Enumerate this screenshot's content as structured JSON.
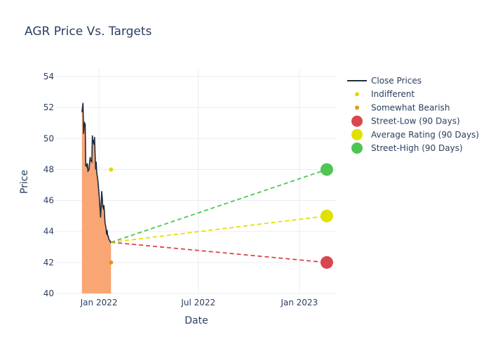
{
  "chart_data": {
    "type": "line",
    "title": "AGR Price Vs. Targets",
    "xlabel": "Date",
    "ylabel": "Price",
    "ylim": [
      40,
      54.5
    ],
    "xlim": [
      "2021-10-15",
      "2023-03-10"
    ],
    "y_ticks": [
      40,
      42,
      44,
      46,
      48,
      50,
      52,
      54
    ],
    "x_ticks": [
      {
        "date": "2022-01-01",
        "label": "Jan 2022"
      },
      {
        "date": "2022-07-01",
        "label": "Jul 2022"
      },
      {
        "date": "2023-01-01",
        "label": "Jan 2023"
      }
    ],
    "grid": true,
    "legend_position": "right",
    "colors": {
      "close_line": "#1f2d3d",
      "close_fill": "#f9a574",
      "indifferent": "#e1d800",
      "somewhat_bearish": "#e09a1b",
      "street_low": "#d9464d",
      "average": "#e1e100",
      "street_high": "#4fc553"
    },
    "series": [
      {
        "name": "Close Prices",
        "kind": "area-line",
        "points": [
          [
            "2021-12-01",
            51.7
          ],
          [
            "2021-12-02",
            52.0
          ],
          [
            "2021-12-03",
            52.3
          ],
          [
            "2021-12-04",
            50.3
          ],
          [
            "2021-12-05",
            50.8
          ],
          [
            "2021-12-06",
            51.0
          ],
          [
            "2021-12-07",
            50.9
          ],
          [
            "2021-12-08",
            48.2
          ],
          [
            "2021-12-09",
            48.3
          ],
          [
            "2021-12-10",
            48.2
          ],
          [
            "2021-12-11",
            48.4
          ],
          [
            "2021-12-12",
            47.9
          ],
          [
            "2021-12-14",
            48.0
          ],
          [
            "2021-12-16",
            48.8
          ],
          [
            "2021-12-17",
            48.6
          ],
          [
            "2021-12-19",
            48.5
          ],
          [
            "2021-12-20",
            50.2
          ],
          [
            "2021-12-21",
            49.7
          ],
          [
            "2021-12-22",
            49.8
          ],
          [
            "2021-12-23",
            49.6
          ],
          [
            "2021-12-24",
            50.1
          ],
          [
            "2021-12-25",
            49.0
          ],
          [
            "2021-12-26",
            48.0
          ],
          [
            "2021-12-27",
            48.5
          ],
          [
            "2021-12-28",
            47.8
          ],
          [
            "2021-12-30",
            47.3
          ],
          [
            "2022-01-01",
            46.5
          ],
          [
            "2022-01-02",
            46.0
          ],
          [
            "2022-01-03",
            45.5
          ],
          [
            "2022-01-04",
            44.9
          ],
          [
            "2022-01-05",
            45.7
          ],
          [
            "2022-01-06",
            46.6
          ],
          [
            "2022-01-07",
            46.2
          ],
          [
            "2022-01-08",
            45.6
          ],
          [
            "2022-01-09",
            45.5
          ],
          [
            "2022-01-10",
            45.7
          ],
          [
            "2022-01-11",
            45.3
          ],
          [
            "2022-01-12",
            44.6
          ],
          [
            "2022-01-14",
            44.2
          ],
          [
            "2022-01-15",
            43.8
          ],
          [
            "2022-01-16",
            44.1
          ],
          [
            "2022-01-17",
            43.7
          ],
          [
            "2022-01-18",
            43.7
          ],
          [
            "2022-01-19",
            43.5
          ],
          [
            "2022-01-21",
            43.4
          ],
          [
            "2022-01-22",
            43.3
          ],
          [
            "2022-01-23",
            43.3
          ]
        ]
      },
      {
        "name": "Indifferent",
        "kind": "marker",
        "size": "small",
        "points": [
          [
            "2022-01-23",
            48.0
          ]
        ]
      },
      {
        "name": "Somewhat Bearish",
        "kind": "marker",
        "size": "small",
        "points": [
          [
            "2022-01-23",
            42.0
          ]
        ]
      },
      {
        "name": "Street-Low (90 Days)",
        "kind": "target",
        "start": [
          "2022-01-23",
          43.3
        ],
        "end": [
          "2023-02-20",
          42.0
        ]
      },
      {
        "name": "Average Rating (90 Days)",
        "kind": "target",
        "start": [
          "2022-01-23",
          43.3
        ],
        "end": [
          "2023-02-20",
          45.0
        ]
      },
      {
        "name": "Street-High (90 Days)",
        "kind": "target",
        "start": [
          "2022-01-23",
          43.3
        ],
        "end": [
          "2023-02-20",
          48.0
        ]
      }
    ]
  }
}
